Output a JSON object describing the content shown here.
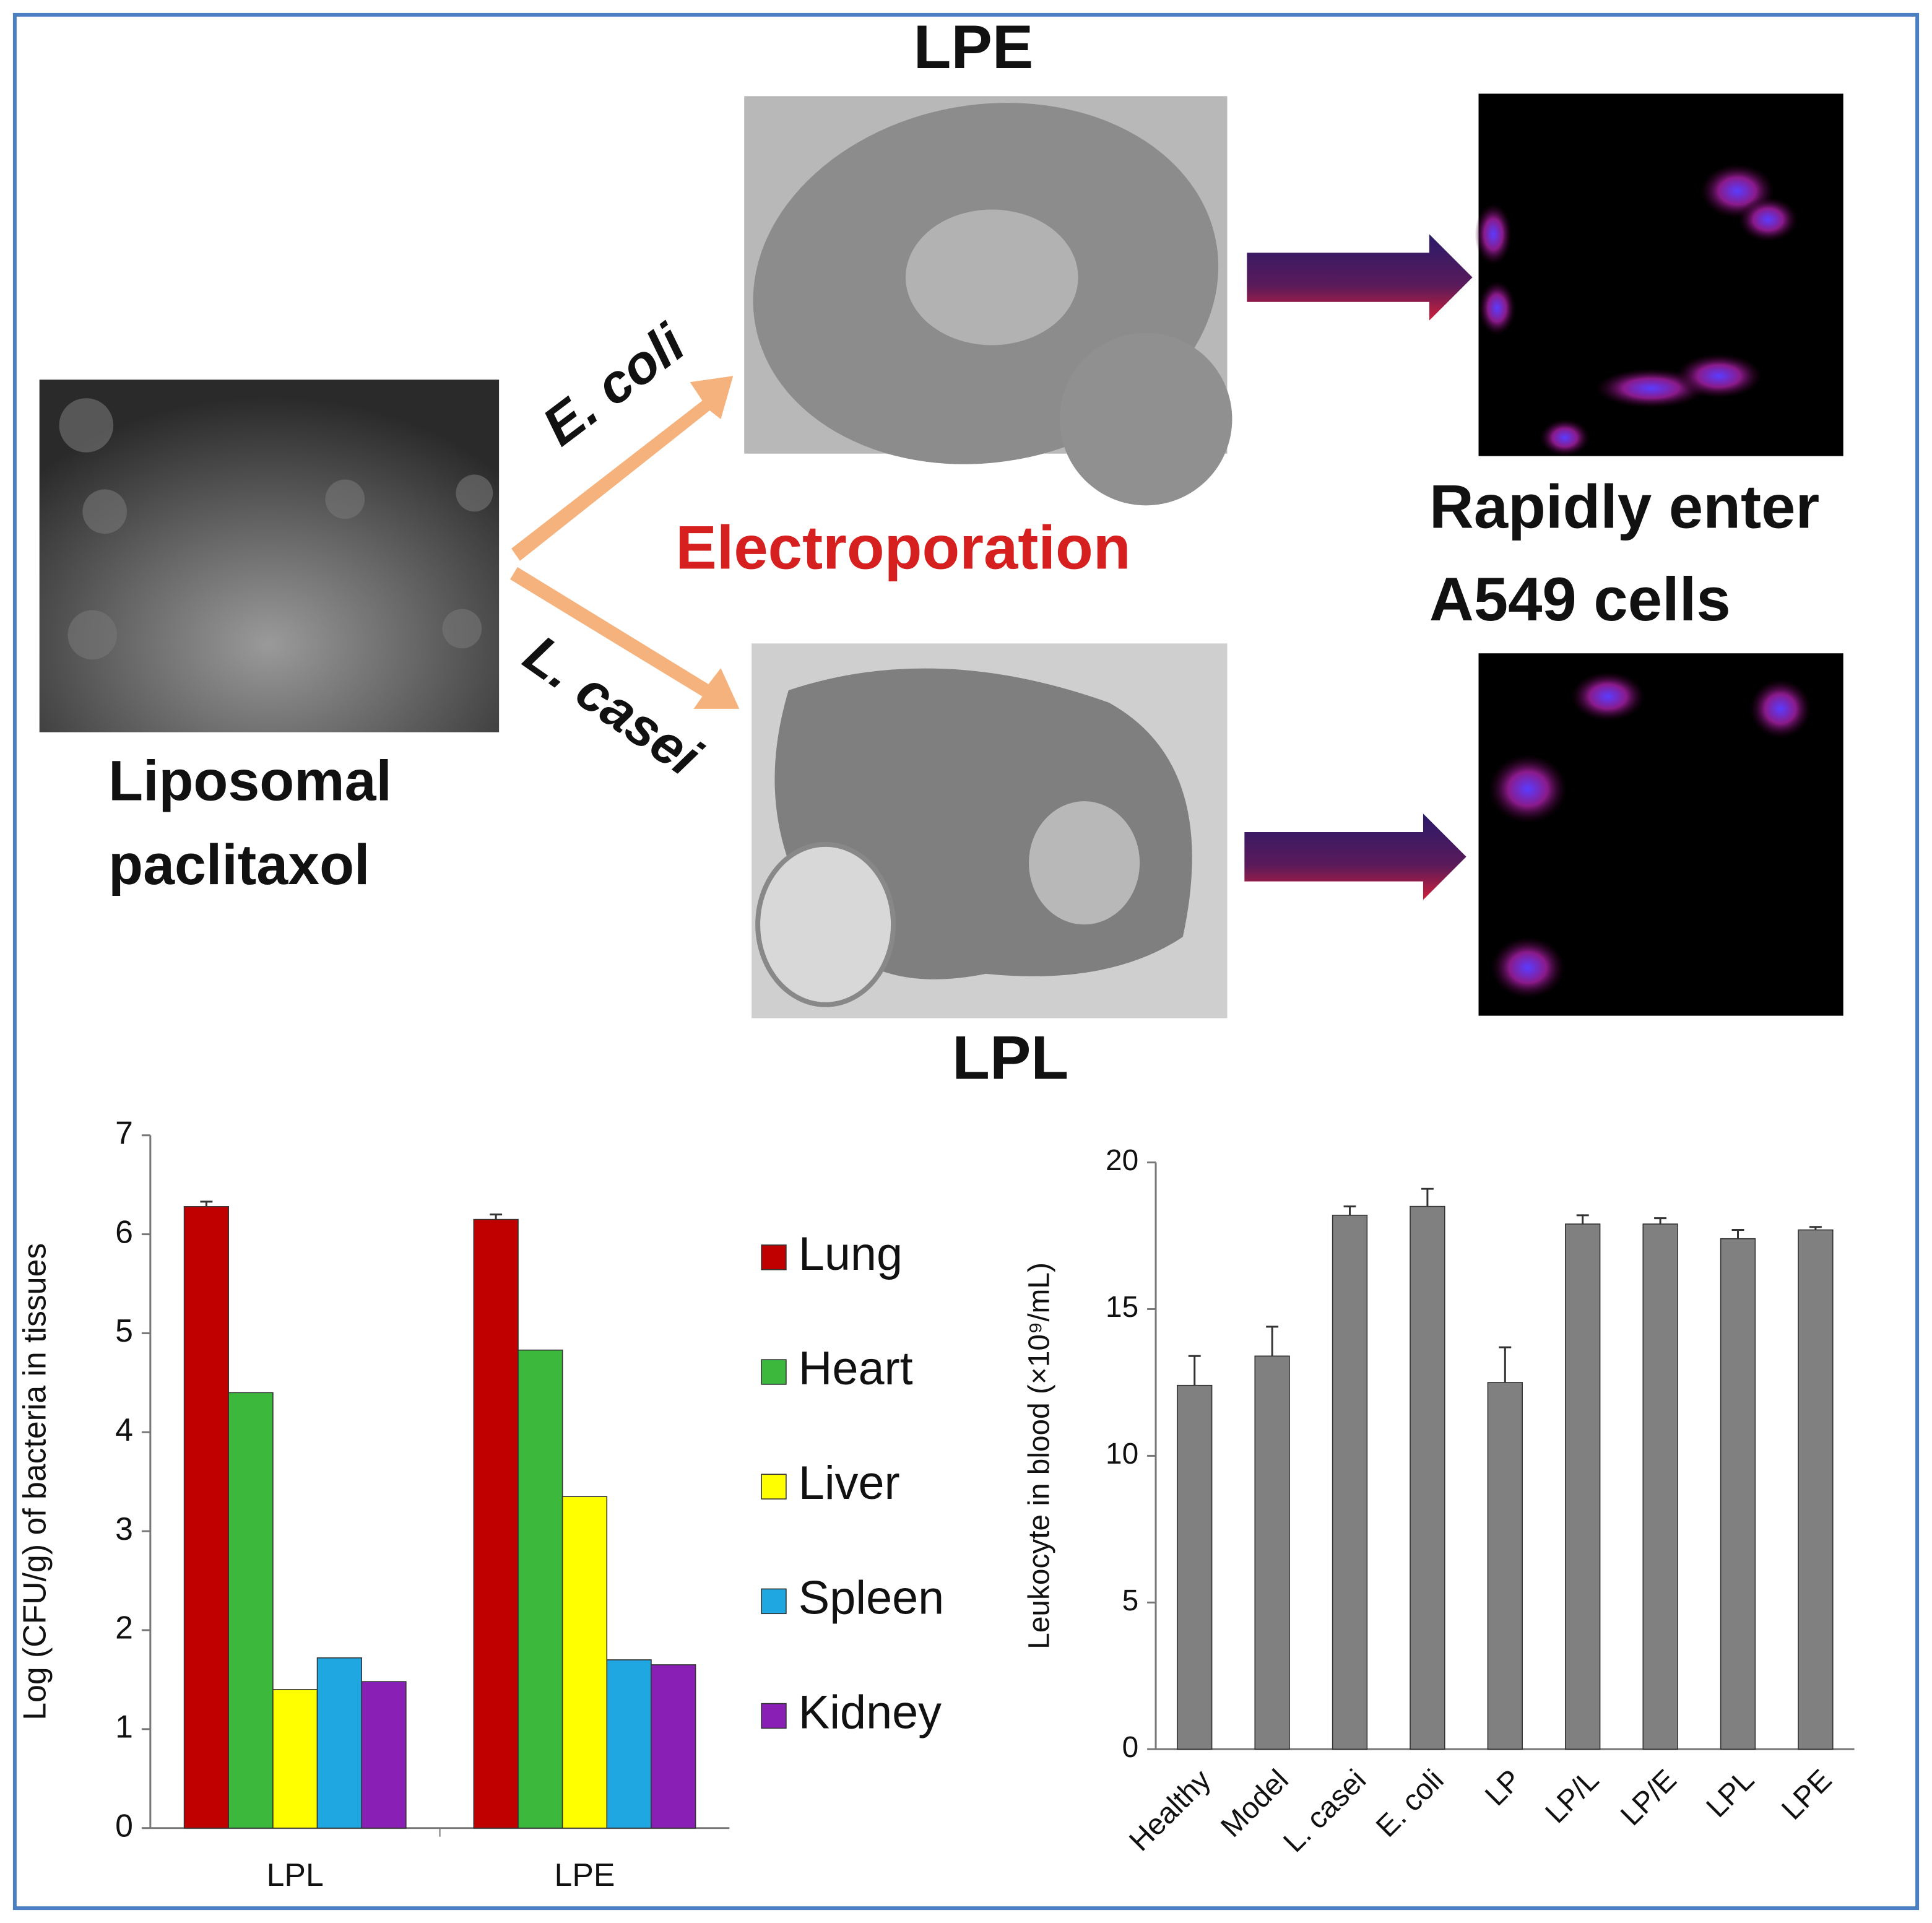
{
  "diagram": {
    "source_label": [
      "Liposomal",
      "paclitaxol"
    ],
    "top_route": "E. coli",
    "bottom_route": "L. casei",
    "method": "Electroporation",
    "top_product": "LPE",
    "bottom_product": "LPL",
    "result": [
      "Rapidly enter",
      "A549 cells"
    ]
  },
  "chart_data": [
    {
      "type": "bar",
      "ylabel": "Log (CFU/g) of bacteria in tissues",
      "categories": [
        "LPL",
        "LPE"
      ],
      "series": [
        {
          "name": "Lung",
          "color": "#c00000",
          "values": [
            6.28,
            6.15
          ],
          "errors": [
            0.05,
            0.05
          ]
        },
        {
          "name": "Heart",
          "color": "#3cb93c",
          "values": [
            4.4,
            4.83
          ]
        },
        {
          "name": "Liver",
          "color": "#ffff00",
          "values": [
            1.4,
            3.35
          ]
        },
        {
          "name": "Spleen",
          "color": "#1ea7e1",
          "values": [
            1.72,
            1.7
          ]
        },
        {
          "name": "Kidney",
          "color": "#8a1fb5",
          "values": [
            1.48,
            1.65
          ]
        }
      ],
      "ylim": [
        0,
        7
      ],
      "yticks": [
        0,
        1,
        2,
        3,
        4,
        5,
        6,
        7
      ],
      "legend": "right"
    },
    {
      "type": "bar",
      "ylabel": "Leukocyte in blood (×10⁹/mL)",
      "categories": [
        "Healthy",
        "Model",
        "L. casei",
        "E. coli",
        "LP",
        "LP/L",
        "LP/E",
        "LPL",
        "LPE"
      ],
      "values": [
        12.4,
        13.4,
        18.2,
        18.5,
        12.5,
        17.9,
        17.9,
        17.4,
        17.7
      ],
      "errors": [
        1.0,
        1.0,
        0.3,
        0.6,
        1.2,
        0.3,
        0.2,
        0.3,
        0.1
      ],
      "color": "#808080",
      "ylim": [
        0,
        20
      ],
      "yticks": [
        0,
        5,
        10,
        15,
        20
      ]
    }
  ]
}
